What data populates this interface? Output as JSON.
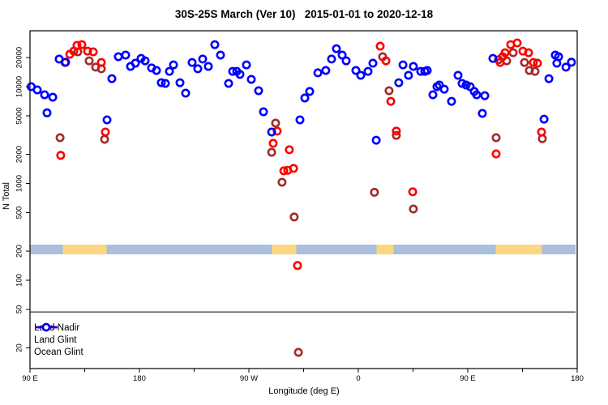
{
  "chart_data": {
    "type": "scatter",
    "title": "30S-25S March (Ver 10)   2015-01-01 to 2020-12-18",
    "xlabel": "Longitude (deg E)",
    "ylabel": "N Total",
    "x_axis": {
      "extended_deg_range": [
        90,
        540
      ],
      "tick_positions_deg": [
        90,
        180,
        270,
        360,
        450,
        540
      ],
      "tick_labels": [
        "90 E",
        "180",
        "90 W",
        "0",
        "90 E",
        "180"
      ],
      "minor_tick_every_deg": 45
    },
    "y_axis": {
      "scale": "log",
      "ticks": [
        20,
        50,
        100,
        200,
        500,
        1000,
        2000,
        5000,
        10000,
        20000
      ],
      "range_approx": [
        13,
        38000
      ]
    },
    "reference_line_value": 47,
    "surface_band": {
      "meaning": "ocean/land strip along longitude",
      "value_range": [
        185,
        235
      ],
      "ocean_color": "#A9BFDC",
      "land_color": "#FBD87F",
      "land_segments_deg": [
        [
          117,
          153
        ],
        [
          289,
          309
        ],
        [
          375,
          389
        ],
        [
          473,
          511
        ]
      ]
    },
    "legend": {
      "position": "bottom-left",
      "entries": [
        "Land Nadir",
        "Land Glint",
        "Ocean Glint"
      ]
    },
    "series": [
      {
        "name": "Land Nadir",
        "color": "#A52A2A",
        "points": [
          [
            114.7,
            2970
          ],
          [
            129.3,
            22900
          ],
          [
            138.7,
            18500
          ],
          [
            144,
            15900
          ],
          [
            148.7,
            15300
          ],
          [
            151.3,
            2860
          ],
          [
            288.7,
            2100
          ],
          [
            292,
            4200
          ],
          [
            297.3,
            1030
          ],
          [
            307.3,
            450
          ],
          [
            310.7,
            18
          ],
          [
            373.3,
            810
          ],
          [
            380,
            20400
          ],
          [
            385.3,
            9080
          ],
          [
            391.3,
            3140
          ],
          [
            405.3,
            545
          ],
          [
            473.3,
            2970
          ],
          [
            475.3,
            19000
          ],
          [
            482,
            18500
          ],
          [
            487.3,
            22400
          ],
          [
            496.7,
            17800
          ],
          [
            500.7,
            14700
          ],
          [
            505.3,
            14400
          ],
          [
            511.3,
            2900
          ]
        ]
      },
      {
        "name": "Land Glint",
        "color": "#FF0000",
        "points": [
          [
            115.3,
            1950
          ],
          [
            118.7,
            17800
          ],
          [
            122.7,
            21600
          ],
          [
            126,
            23300
          ],
          [
            128.7,
            26700
          ],
          [
            132.7,
            27200
          ],
          [
            137.3,
            23300
          ],
          [
            142,
            22900
          ],
          [
            148.7,
            17800
          ],
          [
            152,
            3400
          ],
          [
            290,
            2600
          ],
          [
            293.3,
            3470
          ],
          [
            298.7,
            1350
          ],
          [
            302,
            1370
          ],
          [
            303.3,
            2230
          ],
          [
            306.7,
            1430
          ],
          [
            310,
            142
          ],
          [
            378,
            26200
          ],
          [
            382.7,
            18500
          ],
          [
            386.7,
            7060
          ],
          [
            391.3,
            3470
          ],
          [
            404.7,
            820
          ],
          [
            473.3,
            2020
          ],
          [
            476.7,
            17800
          ],
          [
            478.7,
            20400
          ],
          [
            480.7,
            22400
          ],
          [
            485.3,
            27200
          ],
          [
            490.7,
            28300
          ],
          [
            495.3,
            23300
          ],
          [
            500,
            22400
          ],
          [
            504,
            17800
          ],
          [
            507.3,
            17500
          ],
          [
            510.7,
            3400
          ]
        ]
      },
      {
        "name": "Ocean Glint",
        "color": "#0000FF",
        "points": [
          [
            91,
            10000
          ],
          [
            96,
            9260
          ],
          [
            102,
            8250
          ],
          [
            104,
            5370
          ],
          [
            108.7,
            7780
          ],
          [
            114,
            19300
          ],
          [
            119.3,
            17900
          ],
          [
            153.3,
            4540
          ],
          [
            157.3,
            12100
          ],
          [
            162.7,
            20400
          ],
          [
            168.7,
            21200
          ],
          [
            172.7,
            16200
          ],
          [
            176.7,
            17500
          ],
          [
            181.3,
            19600
          ],
          [
            184.7,
            18500
          ],
          [
            190,
            15600
          ],
          [
            194,
            14700
          ],
          [
            198,
            11000
          ],
          [
            201.3,
            10800
          ],
          [
            204.7,
            14400
          ],
          [
            208,
            16800
          ],
          [
            213.3,
            11000
          ],
          [
            218,
            8570
          ],
          [
            223.3,
            17800
          ],
          [
            228,
            15300
          ],
          [
            232,
            19300
          ],
          [
            236.7,
            16200
          ],
          [
            242,
            27200
          ],
          [
            246.7,
            21200
          ],
          [
            253.3,
            10800
          ],
          [
            256.7,
            14400
          ],
          [
            260,
            14400
          ],
          [
            262.7,
            13400
          ],
          [
            268,
            16800
          ],
          [
            272,
            11900
          ],
          [
            278,
            9080
          ],
          [
            282,
            5500
          ],
          [
            288.7,
            3400
          ],
          [
            312,
            4540
          ],
          [
            316,
            7630
          ],
          [
            320,
            8930
          ],
          [
            326.7,
            13900
          ],
          [
            333.3,
            14700
          ],
          [
            338,
            19300
          ],
          [
            342,
            24700
          ],
          [
            346.7,
            21200
          ],
          [
            350,
            18500
          ],
          [
            358,
            14700
          ],
          [
            362,
            13100
          ],
          [
            368,
            14400
          ],
          [
            372,
            17500
          ],
          [
            374.7,
            2800
          ],
          [
            393.3,
            11000
          ],
          [
            396.7,
            16800
          ],
          [
            401.3,
            13100
          ],
          [
            405.3,
            16200
          ],
          [
            411.3,
            14400
          ],
          [
            414.7,
            14400
          ],
          [
            416.7,
            14700
          ],
          [
            421.3,
            8250
          ],
          [
            424.7,
            10000
          ],
          [
            426.7,
            10400
          ],
          [
            430.7,
            9420
          ],
          [
            436.7,
            7060
          ],
          [
            442,
            13100
          ],
          [
            445.3,
            10800
          ],
          [
            448.7,
            10400
          ],
          [
            452,
            10000
          ],
          [
            455.3,
            8930
          ],
          [
            457.3,
            8250
          ],
          [
            462,
            5290
          ],
          [
            464,
            8080
          ],
          [
            470.7,
            19600
          ],
          [
            512.7,
            4620
          ],
          [
            516.7,
            12100
          ],
          [
            522,
            21200
          ],
          [
            523.3,
            17500
          ],
          [
            524.7,
            20400
          ],
          [
            530.7,
            15900
          ],
          [
            535.3,
            17900
          ]
        ]
      }
    ]
  }
}
